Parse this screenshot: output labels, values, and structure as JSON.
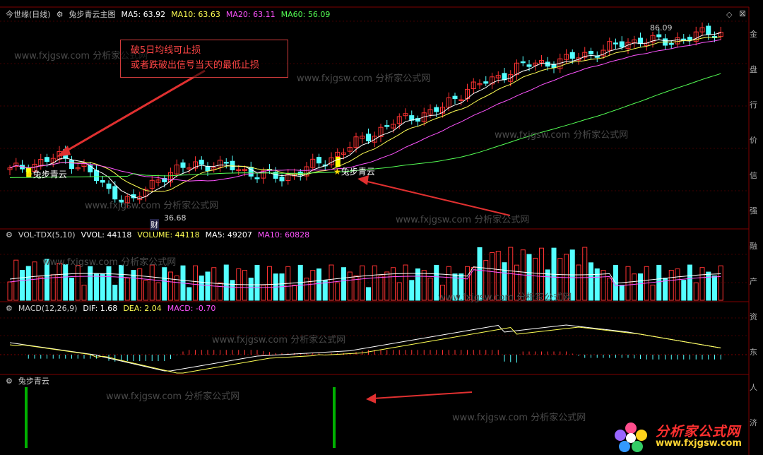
{
  "main_panel": {
    "stock_name": "今世缘(日线)",
    "indicator_name": "兔步青云主图",
    "ma5": "MA5: 63.92",
    "ma10": "MA10: 63.63",
    "ma20": "MA20: 63.11",
    "ma60": "MA60: 56.09",
    "high_label": "86.09",
    "low_label": "36.68",
    "cai_label": "财",
    "signal_label_1": "兔步青云",
    "signal_label_2": "兔步青云",
    "annotation_line1": "破5日均线可止损",
    "annotation_line2": "或者跌破出信号当天的最低止损"
  },
  "volume_panel": {
    "name": "VOL-TDX(5,10)",
    "vvol": "VVOL: 44118",
    "volume": "VOLUME: 44118",
    "ma5": "MA5: 49207",
    "ma10": "MA10: 60828"
  },
  "macd_panel": {
    "name": "MACD(12,26,9)",
    "dif": "DIF: 1.68",
    "dea": "DEA: 2.04",
    "macd": "MACD: -0.70"
  },
  "signal_panel": {
    "name": "兔步青云"
  },
  "watermark": {
    "text": "www.fxjgsw.com  分析家公式网"
  },
  "logo": {
    "title": "分析家公式网",
    "url": "www.fxjgsw.com"
  },
  "right_strip": [
    "金",
    "盘",
    "行",
    "价",
    "信",
    "强",
    "融",
    "产",
    "资",
    "东",
    "人",
    "济"
  ],
  "colors": {
    "up": "#ff3232",
    "down": "#54ffff",
    "ma5": "#ffffff",
    "ma10": "#ffff54",
    "ma20": "#ff54ff",
    "ma60": "#54ff54",
    "signal": "#ffff00",
    "signal_bar": "#00b000",
    "grid": "#800000"
  }
}
